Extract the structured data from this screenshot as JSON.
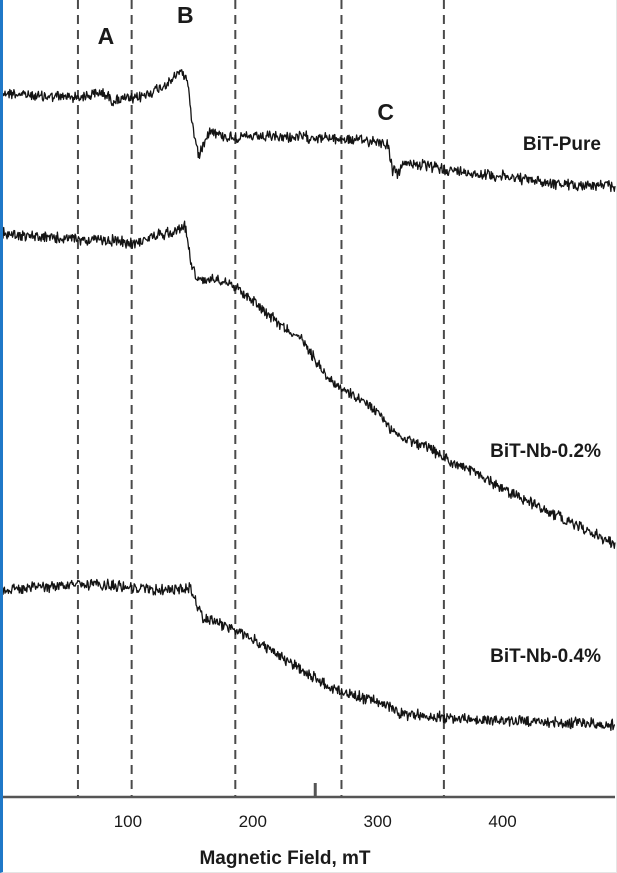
{
  "chart_data": {
    "type": "line",
    "title": "",
    "xlabel": "Magnetic Field, mT",
    "ylabel": "",
    "xlim": [
      0,
      490
    ],
    "xticks": [
      100,
      200,
      300,
      400
    ],
    "reference_lines_x": [
      60,
      103,
      186,
      271,
      353
    ],
    "peak_labels": [
      {
        "text": "A",
        "x": 80
      },
      {
        "text": "B",
        "x": 146
      },
      {
        "text": "C",
        "x": 312
      }
    ],
    "series": [
      {
        "name": "BiT-Pure",
        "x": [
          0,
          30,
          60,
          70,
          80,
          88,
          95,
          105,
          115,
          125,
          135,
          142,
          148,
          152,
          157,
          162,
          167,
          172,
          180,
          200,
          250,
          280,
          300,
          308,
          312,
          316,
          320,
          325,
          335,
          360,
          400,
          450,
          490
        ],
        "y": [
          0.85,
          0.78,
          0.77,
          0.8,
          0.85,
          0.7,
          0.74,
          0.72,
          0.82,
          0.92,
          1.05,
          1.25,
          1.05,
          0.2,
          -0.3,
          0.05,
          0.2,
          0.1,
          0.05,
          0.05,
          0.05,
          0.0,
          -0.02,
          -0.08,
          -0.55,
          -0.6,
          -0.45,
          -0.4,
          -0.45,
          -0.55,
          -0.65,
          -0.8,
          -0.82
        ]
      },
      {
        "name": "BiT-Nb-0.2%",
        "x": [
          0,
          30,
          60,
          90,
          100,
          110,
          120,
          135,
          146,
          150,
          155,
          160,
          170,
          180,
          200,
          220,
          240,
          260,
          280,
          300,
          310,
          320,
          340,
          360,
          380,
          400,
          430,
          460,
          490
        ],
        "y": [
          0.9,
          0.85,
          0.82,
          0.8,
          0.76,
          0.79,
          0.86,
          0.92,
          1.0,
          0.55,
          0.3,
          0.25,
          0.3,
          0.25,
          0.0,
          -0.3,
          -0.55,
          -1.05,
          -1.3,
          -1.5,
          -1.75,
          -1.85,
          -2.0,
          -2.2,
          -2.35,
          -2.55,
          -2.8,
          -3.05,
          -3.3
        ]
      },
      {
        "name": "BiT-Nb-0.4%",
        "x": [
          0,
          30,
          60,
          80,
          100,
          120,
          140,
          150,
          155,
          160,
          170,
          180,
          200,
          220,
          240,
          260,
          280,
          300,
          320,
          350,
          380,
          420,
          460,
          490
        ],
        "y": [
          0.0,
          0.05,
          0.08,
          0.08,
          0.05,
          0.0,
          0.0,
          0.03,
          -0.2,
          -0.45,
          -0.5,
          -0.6,
          -0.8,
          -1.05,
          -1.3,
          -1.55,
          -1.7,
          -1.8,
          -2.0,
          -2.05,
          -2.1,
          -2.12,
          -2.15,
          -2.18
        ]
      }
    ],
    "series_labels": [
      "BiT-Pure",
      "BiT-Nb-0.2%",
      "BiT-Nb-0.4%"
    ]
  },
  "colors": {
    "trace": "#141414",
    "dashed": "#4a4a4a",
    "axis": "#555555",
    "frame_accent": "#1f78c8"
  }
}
